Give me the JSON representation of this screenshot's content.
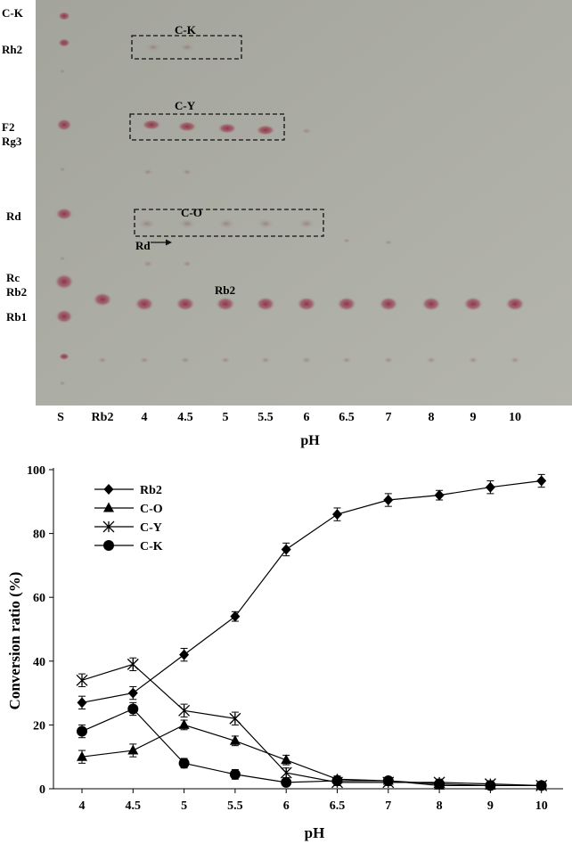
{
  "tlc": {
    "left_labels": [
      "C-K",
      "Rh2",
      "F2",
      "Rg3",
      "Rd",
      "Rc",
      "Rb2",
      "Rb1"
    ],
    "lane_labels": [
      "S",
      "Rb2",
      "4",
      "4.5",
      "5",
      "5.5",
      "6",
      "6.5",
      "7",
      "8",
      "9",
      "10"
    ],
    "box_labels": [
      "C-K",
      "C-Y",
      "C-O"
    ],
    "rb2_band_label": "Rb2",
    "rd_arrow_label": "Rd",
    "xlabel": "pH",
    "colors": {
      "plate": "#a9a9a0",
      "spot": "#9c4c5c",
      "box_border": "#111111"
    }
  },
  "chart_data": {
    "type": "line",
    "title": "",
    "xlabel": "pH",
    "ylabel": "Conversion ratio (%)",
    "categories": [
      "4",
      "4.5",
      "5",
      "5.5",
      "6",
      "6.5",
      "7",
      "8",
      "9",
      "10"
    ],
    "ylim": [
      0,
      100
    ],
    "yticks": [
      0,
      20,
      40,
      60,
      80,
      100
    ],
    "grid": false,
    "legend_position": "top-left",
    "series": [
      {
        "name": "Rb2",
        "marker": "diamond",
        "values": [
          27,
          30,
          42,
          54,
          75,
          86,
          90.5,
          92,
          94.5,
          96.5
        ],
        "errors": [
          2,
          2,
          2,
          1.5,
          2,
          2,
          2,
          1.5,
          2,
          2
        ]
      },
      {
        "name": "C-O",
        "marker": "triangle",
        "values": [
          10,
          12,
          20,
          15,
          9,
          3,
          2.5,
          1,
          1,
          1
        ],
        "errors": [
          2,
          2,
          1.5,
          1.5,
          1.5,
          1,
          1,
          1,
          1,
          1
        ]
      },
      {
        "name": "C-Y",
        "marker": "star",
        "values": [
          34,
          39,
          24.5,
          22,
          5,
          2,
          2,
          2,
          1.5,
          1
        ],
        "errors": [
          2,
          2,
          2,
          2,
          1.5,
          1,
          1,
          1,
          1,
          1
        ]
      },
      {
        "name": "C-K",
        "marker": "circle",
        "values": [
          18,
          25,
          8,
          4.5,
          2,
          2.5,
          2.5,
          1.5,
          1,
          1
        ],
        "errors": [
          2,
          2,
          1.5,
          1.5,
          1,
          1,
          1,
          1,
          1,
          1
        ]
      }
    ]
  }
}
